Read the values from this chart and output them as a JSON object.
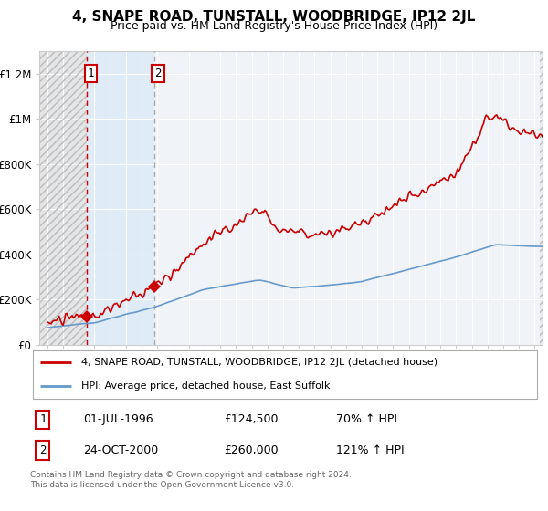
{
  "title": "4, SNAPE ROAD, TUNSTALL, WOODBRIDGE, IP12 2JL",
  "subtitle": "Price paid vs. HM Land Registry's House Price Index (HPI)",
  "property_label": "4, SNAPE ROAD, TUNSTALL, WOODBRIDGE, IP12 2JL (detached house)",
  "hpi_label": "HPI: Average price, detached house, East Suffolk",
  "sale1_date": "01-JUL-1996",
  "sale1_price": "£124,500",
  "sale1_hpi": "70% ↑ HPI",
  "sale2_date": "24-OCT-2000",
  "sale2_price": "£260,000",
  "sale2_hpi": "121% ↑ HPI",
  "sale1_x": 1996.5,
  "sale1_y": 124500,
  "sale2_x": 2000.79,
  "sale2_y": 260000,
  "sale1_vline_x": 1996.5,
  "sale2_vline_x": 2000.79,
  "ylim": [
    0,
    1300000
  ],
  "xlim": [
    1993.5,
    2025.5
  ],
  "background_color": "#ffffff",
  "plot_bg_color": "#f0f4f8",
  "line1_color": "#cc0000",
  "line2_color": "#6699cc",
  "grid_color": "#ffffff",
  "footer_text": "Contains HM Land Registry data © Crown copyright and database right 2024.\nThis data is licensed under the Open Government Licence v3.0."
}
